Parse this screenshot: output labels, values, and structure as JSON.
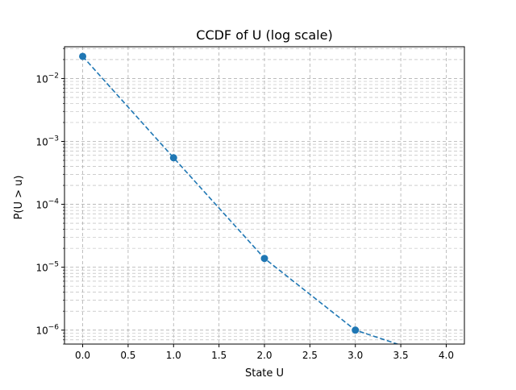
{
  "chart_data": {
    "type": "line",
    "title": "CCDF of U (log scale)",
    "xlabel": "State U",
    "ylabel": "P(U > u)",
    "x_scale": "linear",
    "y_scale": "log",
    "xlim": [
      -0.2,
      4.2
    ],
    "ylim": [
      6e-07,
      0.032
    ],
    "x_ticks": [
      0.0,
      0.5,
      1.0,
      1.5,
      2.0,
      2.5,
      3.0,
      3.5,
      4.0
    ],
    "x_tick_labels": [
      "0.0",
      "0.5",
      "1.0",
      "1.5",
      "2.0",
      "2.5",
      "3.0",
      "3.5",
      "4.0"
    ],
    "y_major_ticks": [
      {
        "value": 1e-06,
        "base": "10",
        "exp": "−6"
      },
      {
        "value": 1e-05,
        "base": "10",
        "exp": "−5"
      },
      {
        "value": 0.0001,
        "base": "10",
        "exp": "−4"
      },
      {
        "value": 0.001,
        "base": "10",
        "exp": "−3"
      },
      {
        "value": 0.01,
        "base": "10",
        "exp": "−2"
      }
    ],
    "grid": true,
    "grid_minor": true,
    "series": [
      {
        "x": [
          0,
          1,
          2,
          3,
          4
        ],
        "y": [
          0.0225,
          0.00055,
          1.38e-05,
          1e-06,
          0
        ],
        "line_style": "dashed",
        "marker": "circle",
        "color": "#1f77b4"
      }
    ]
  }
}
